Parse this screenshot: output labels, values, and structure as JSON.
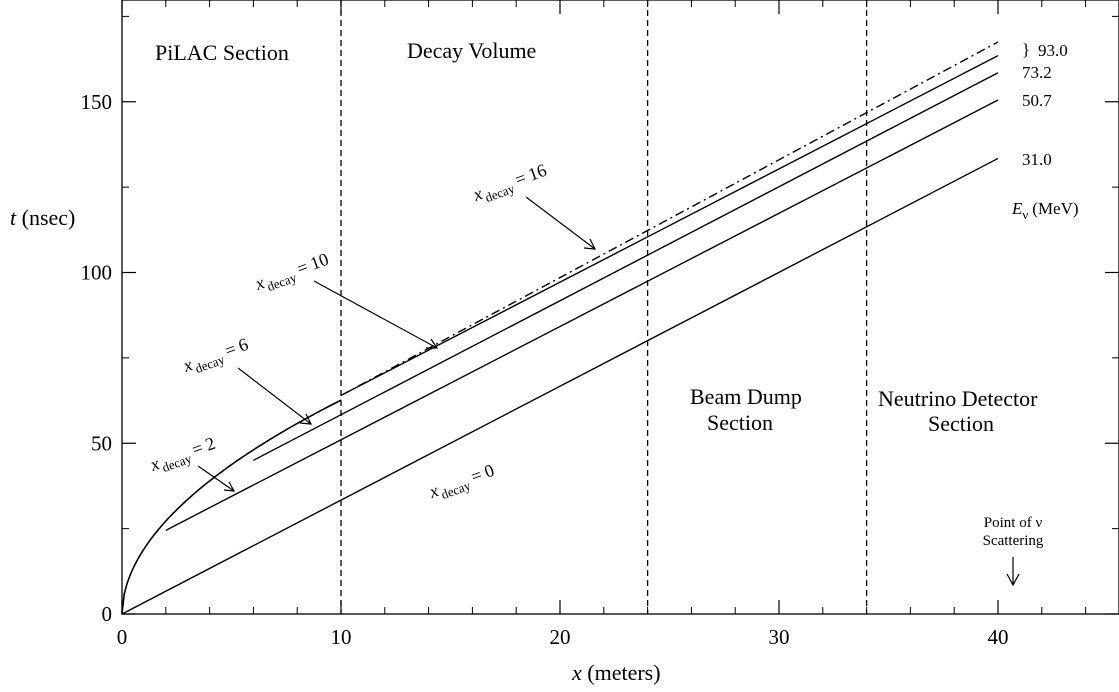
{
  "chart_data": {
    "type": "line",
    "xlabel_var": "x",
    "xlabel_unit": "(meters)",
    "ylabel_var": "t",
    "ylabel_unit": "(nsec)",
    "xlim": [
      0,
      45
    ],
    "ylim": [
      0,
      180
    ],
    "x_ticks": [
      0,
      10,
      20,
      30,
      40
    ],
    "y_ticks": [
      0,
      50,
      100,
      150
    ],
    "boundaries": [
      10,
      24,
      34
    ],
    "regions": [
      {
        "label": "PiLAC Section"
      },
      {
        "label": "Decay Volume"
      },
      {
        "label": "Beam Dump Section"
      },
      {
        "label": "Neutrino Detector Section"
      }
    ],
    "series": [
      {
        "x_decay": 0,
        "E_nu": "31.0",
        "points": [
          [
            0,
            0
          ],
          [
            40,
            133.4
          ]
        ]
      },
      {
        "x_decay": 2,
        "E_nu": "50.7",
        "points": [
          [
            2,
            24.5
          ],
          [
            40,
            150.5
          ]
        ]
      },
      {
        "x_decay": 6,
        "E_nu": "73.2",
        "points": [
          [
            6,
            45
          ],
          [
            40,
            158.5
          ]
        ]
      },
      {
        "x_decay": 10,
        "E_nu": "93.0",
        "points": [
          [
            10,
            64
          ],
          [
            40,
            163.5
          ]
        ]
      },
      {
        "x_decay": 16,
        "E_nu": "93.0",
        "style": "dashdot",
        "points": [
          [
            10,
            64
          ],
          [
            40,
            167.5
          ]
        ]
      }
    ],
    "pion_trajectory": {
      "formula": "t = 19.0 * x^0.518",
      "x_range": [
        0,
        10
      ]
    },
    "energy_header_var": "E",
    "energy_header_sub": "ν",
    "energy_header_unit": "(MeV)",
    "energy_labels": [
      "93.0",
      "73.2",
      "50.7",
      "31.0"
    ],
    "curve_label_prefix": "x",
    "curve_label_sub": "decay",
    "curve_label_eq": "=",
    "curve_labels": [
      "0",
      "2",
      "6",
      "10",
      "16"
    ],
    "scatter_note_line1": "Point of ν",
    "scatter_note_line2": "Scattering",
    "brace": "}"
  },
  "colors": {
    "line": "#000000",
    "background": "#ffffff"
  }
}
